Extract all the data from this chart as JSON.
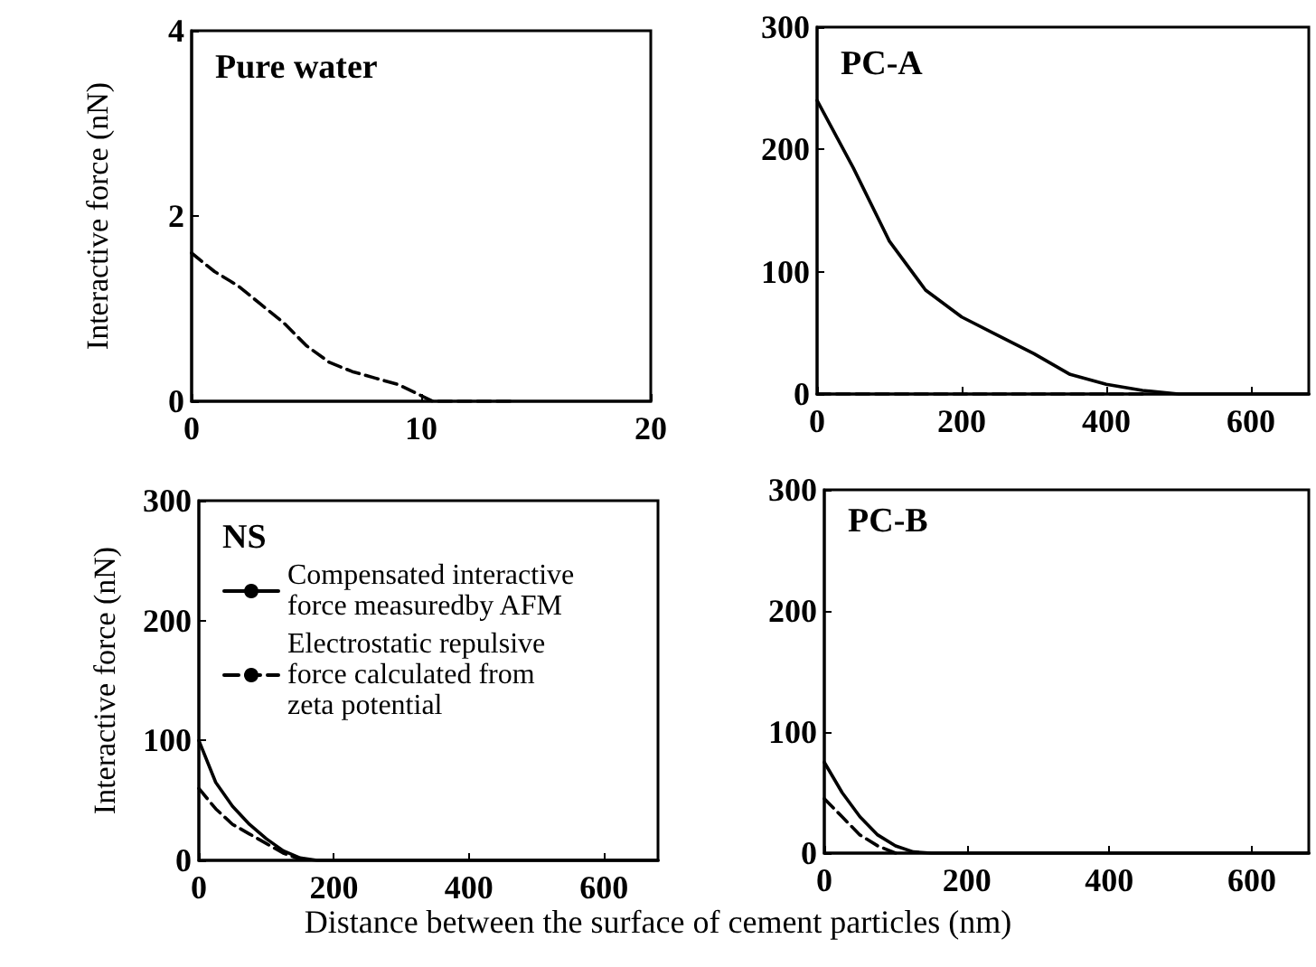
{
  "chart_data": [
    {
      "type": "line",
      "title": "Pure water",
      "ylabel": "Interactive force (nN)",
      "xlim": [
        0,
        20
      ],
      "xticks": [
        0,
        10,
        20
      ],
      "ylim": [
        0,
        4
      ],
      "yticks": [
        0,
        2,
        4
      ],
      "series": [
        {
          "color": "#000000",
          "line_style": "dashed",
          "x": [
            0,
            1,
            2,
            3,
            4,
            5,
            6,
            7,
            8,
            9,
            10,
            10.5,
            12,
            14
          ],
          "values": [
            1.6,
            1.4,
            1.25,
            1.05,
            0.85,
            0.6,
            0.42,
            0.32,
            0.25,
            0.18,
            0.06,
            0,
            0,
            0
          ]
        }
      ]
    },
    {
      "type": "line",
      "title": "PC-A",
      "xlim": [
        0,
        680
      ],
      "xticks": [
        0,
        200,
        400,
        600
      ],
      "ylim": [
        0,
        300
      ],
      "yticks": [
        0,
        100,
        200,
        300
      ],
      "series": [
        {
          "color": "#000000",
          "line_style": "solid",
          "x": [
            0,
            50,
            100,
            150,
            200,
            250,
            300,
            350,
            400,
            450,
            500,
            680
          ],
          "values": [
            240,
            185,
            125,
            85,
            63,
            48,
            33,
            16,
            8,
            3,
            0,
            0
          ]
        },
        {
          "color": "#000000",
          "line_style": "dashed",
          "x": [
            0,
            450
          ],
          "values": [
            0,
            0
          ]
        }
      ]
    },
    {
      "type": "line",
      "title": "NS",
      "ylabel": "Interactive force (nN)",
      "xlabel": "Distance between the surface of cement particles (nm)",
      "legend": "top left",
      "xlim": [
        0,
        680
      ],
      "xticks": [
        0,
        200,
        400,
        600
      ],
      "ylim": [
        0,
        300
      ],
      "yticks": [
        0,
        100,
        200,
        300
      ],
      "series": [
        {
          "name": "Compensated interactive force measuredby AFM",
          "color": "#000000",
          "line_style": "solid",
          "x": [
            0,
            25,
            50,
            75,
            100,
            125,
            150,
            175,
            680
          ],
          "values": [
            100,
            65,
            45,
            30,
            18,
            8,
            2,
            0,
            0
          ]
        },
        {
          "name": "Electrostatic repulsive force calculated from zeta potential",
          "color": "#000000",
          "line_style": "dashed",
          "x": [
            0,
            25,
            50,
            75,
            100,
            125,
            150
          ],
          "values": [
            60,
            43,
            30,
            22,
            14,
            6,
            1
          ]
        }
      ]
    },
    {
      "type": "line",
      "title": "PC-B",
      "xlim": [
        0,
        680
      ],
      "xticks": [
        0,
        200,
        400,
        600
      ],
      "ylim": [
        0,
        300
      ],
      "yticks": [
        0,
        100,
        200,
        300
      ],
      "series": [
        {
          "color": "#000000",
          "line_style": "solid",
          "x": [
            0,
            25,
            50,
            75,
            100,
            125,
            150,
            680
          ],
          "values": [
            75,
            50,
            30,
            15,
            6,
            1,
            0,
            0
          ]
        },
        {
          "color": "#000000",
          "line_style": "dashed",
          "x": [
            0,
            25,
            50,
            75,
            100
          ],
          "values": [
            45,
            30,
            15,
            6,
            0
          ]
        }
      ]
    }
  ]
}
